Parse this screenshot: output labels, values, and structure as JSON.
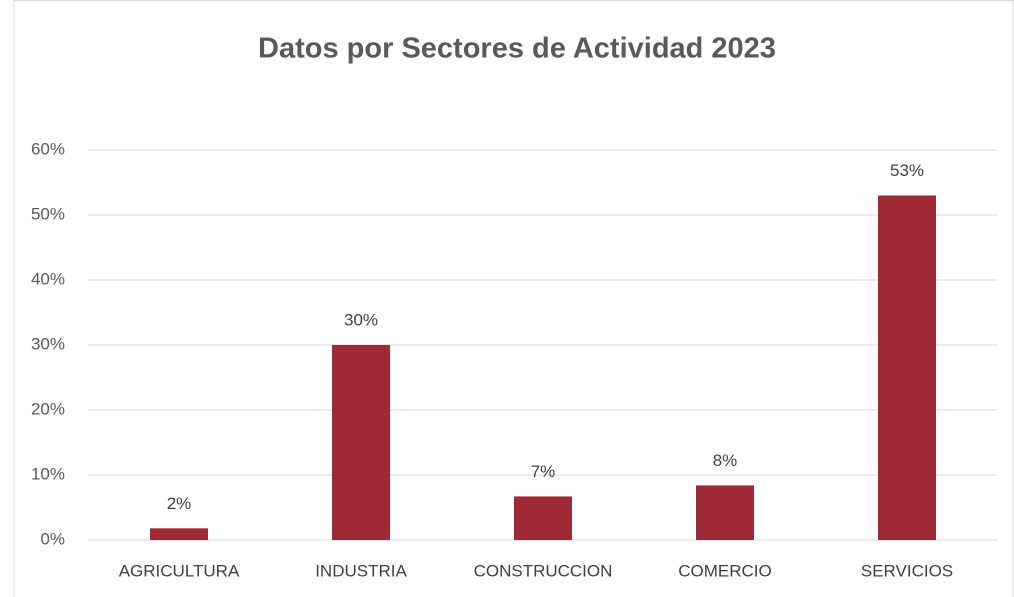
{
  "chart_data": {
    "type": "bar",
    "title": "Datos por Sectores de Actividad 2023",
    "categories": [
      "AGRICULTURA",
      "INDUSTRIA",
      "CONSTRUCCION",
      "COMERCIO",
      "SERVICIOS"
    ],
    "values": [
      1.8,
      30,
      6.7,
      8.4,
      53
    ],
    "value_labels": [
      "2%",
      "30%",
      "7%",
      "8%",
      "53%"
    ],
    "color": "#9e2a38",
    "ylim": [
      0,
      60
    ],
    "yticks": [
      {
        "value": 0,
        "label": "0%"
      },
      {
        "value": 10,
        "label": "10%"
      },
      {
        "value": 20,
        "label": "20%"
      },
      {
        "value": 30,
        "label": "30%"
      },
      {
        "value": 40,
        "label": "40%"
      },
      {
        "value": 50,
        "label": "50%"
      },
      {
        "value": 60,
        "label": "60%"
      }
    ],
    "grid": true
  }
}
